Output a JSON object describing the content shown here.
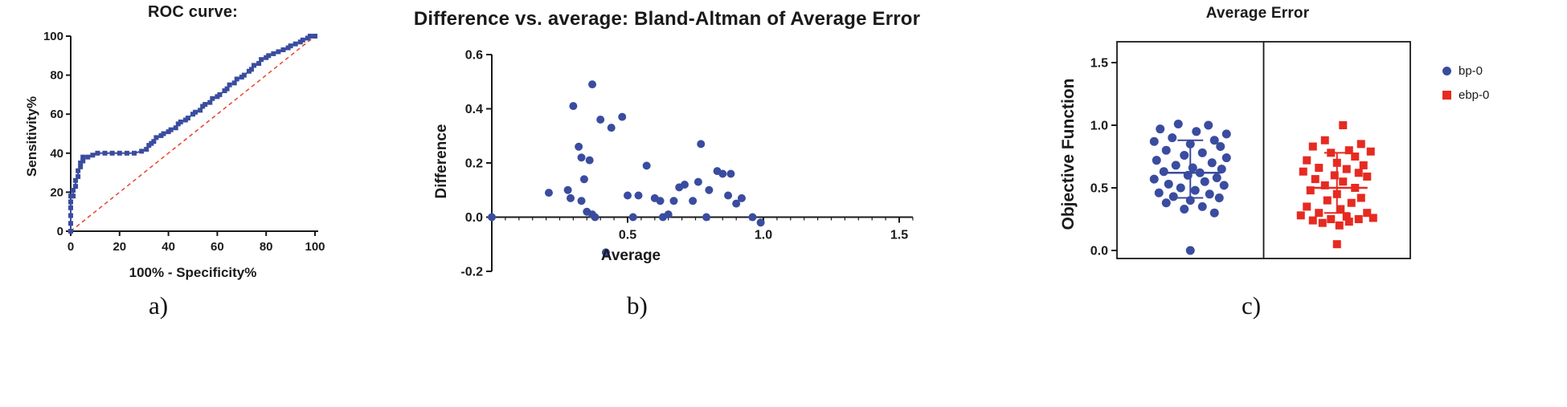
{
  "panels": {
    "a": {
      "label": "a)"
    },
    "b": {
      "label": "b)"
    },
    "c": {
      "label": "c)"
    }
  },
  "chart_data": [
    {
      "id": "roc",
      "type": "line",
      "title": "ROC curve:",
      "xlabel": "100% - Specificity%",
      "ylabel": "Sensitivity%",
      "xlim": [
        0,
        100
      ],
      "ylim": [
        0,
        100
      ],
      "xticks": [
        0,
        20,
        40,
        60,
        80,
        100
      ],
      "yticks": [
        0,
        20,
        40,
        60,
        80,
        100
      ],
      "xtick_labels": [
        "0",
        "20",
        "40",
        "60",
        "80",
        "100"
      ],
      "ytick_labels": [
        "0",
        "20",
        "40",
        "60",
        "80",
        "100"
      ],
      "grid": false,
      "series": [
        {
          "name": "roc-curve",
          "style": "line-with-square-markers",
          "color": "#3A4C9F",
          "points": [
            [
              0,
              0
            ],
            [
              0,
              4
            ],
            [
              0,
              8
            ],
            [
              0,
              12
            ],
            [
              0,
              15
            ],
            [
              0,
              18
            ],
            [
              1,
              18
            ],
            [
              1,
              21
            ],
            [
              2,
              23
            ],
            [
              2,
              26
            ],
            [
              3,
              28
            ],
            [
              3,
              31
            ],
            [
              4,
              33
            ],
            [
              4,
              35
            ],
            [
              5,
              36
            ],
            [
              5,
              38
            ],
            [
              7,
              38
            ],
            [
              9,
              39
            ],
            [
              11,
              40
            ],
            [
              14,
              40
            ],
            [
              17,
              40
            ],
            [
              20,
              40
            ],
            [
              23,
              40
            ],
            [
              26,
              40
            ],
            [
              29,
              41
            ],
            [
              31,
              42
            ],
            [
              32,
              44
            ],
            [
              33,
              45
            ],
            [
              34,
              46
            ],
            [
              35,
              48
            ],
            [
              37,
              49
            ],
            [
              38,
              50
            ],
            [
              40,
              51
            ],
            [
              41,
              52
            ],
            [
              43,
              53
            ],
            [
              44,
              55
            ],
            [
              45,
              56
            ],
            [
              47,
              57
            ],
            [
              48,
              58
            ],
            [
              50,
              60
            ],
            [
              51,
              61
            ],
            [
              53,
              62
            ],
            [
              54,
              64
            ],
            [
              55,
              65
            ],
            [
              57,
              66
            ],
            [
              58,
              68
            ],
            [
              60,
              69
            ],
            [
              61,
              70
            ],
            [
              63,
              72
            ],
            [
              64,
              73
            ],
            [
              65,
              75
            ],
            [
              67,
              76
            ],
            [
              68,
              78
            ],
            [
              70,
              79
            ],
            [
              71,
              80
            ],
            [
              73,
              82
            ],
            [
              74,
              83
            ],
            [
              75,
              85
            ],
            [
              77,
              86
            ],
            [
              78,
              88
            ],
            [
              80,
              89
            ],
            [
              81,
              90
            ],
            [
              83,
              91
            ],
            [
              85,
              92
            ],
            [
              87,
              93
            ],
            [
              89,
              94
            ],
            [
              90,
              95
            ],
            [
              92,
              96
            ],
            [
              94,
              97
            ],
            [
              95,
              98
            ],
            [
              97,
              99
            ],
            [
              98,
              100
            ],
            [
              100,
              100
            ]
          ]
        },
        {
          "name": "identity-line",
          "style": "dashed",
          "color": "#E8432F",
          "points": [
            [
              0,
              0
            ],
            [
              100,
              100
            ]
          ]
        }
      ]
    },
    {
      "id": "bland-altman",
      "type": "scatter",
      "title": "Difference vs. average: Bland-Altman of Average Error",
      "xlabel": "Average",
      "ylabel": "Difference",
      "xlim": [
        0,
        1.55
      ],
      "ylim": [
        -0.2,
        0.6
      ],
      "xticks": [
        0.5,
        1.0,
        1.5
      ],
      "xtick_labels": [
        "0.5",
        "1.0",
        "1.5"
      ],
      "minor_tick_step": 0.05,
      "yticks": [
        -0.2,
        0.0,
        0.2,
        0.4,
        0.6
      ],
      "ytick_labels": [
        "-0.2",
        "0.0",
        "0.2",
        "0.4",
        "0.6"
      ],
      "marker_color": "#3A4C9F",
      "grid": false,
      "points": [
        [
          0.0,
          0.0
        ],
        [
          0.21,
          0.09
        ],
        [
          0.28,
          0.1
        ],
        [
          0.29,
          0.07
        ],
        [
          0.3,
          0.41
        ],
        [
          0.32,
          0.26
        ],
        [
          0.33,
          0.06
        ],
        [
          0.33,
          0.22
        ],
        [
          0.34,
          0.14
        ],
        [
          0.35,
          0.02
        ],
        [
          0.36,
          0.21
        ],
        [
          0.37,
          0.49
        ],
        [
          0.37,
          0.01
        ],
        [
          0.38,
          0.0
        ],
        [
          0.4,
          0.36
        ],
        [
          0.42,
          -0.13
        ],
        [
          0.44,
          0.33
        ],
        [
          0.48,
          0.37
        ],
        [
          0.5,
          0.08
        ],
        [
          0.52,
          0.0
        ],
        [
          0.54,
          0.08
        ],
        [
          0.57,
          0.19
        ],
        [
          0.6,
          0.07
        ],
        [
          0.62,
          0.06
        ],
        [
          0.63,
          0.0
        ],
        [
          0.65,
          0.01
        ],
        [
          0.67,
          0.06
        ],
        [
          0.69,
          0.11
        ],
        [
          0.71,
          0.12
        ],
        [
          0.74,
          0.06
        ],
        [
          0.76,
          0.13
        ],
        [
          0.77,
          0.27
        ],
        [
          0.79,
          0.0
        ],
        [
          0.8,
          0.1
        ],
        [
          0.83,
          0.17
        ],
        [
          0.85,
          0.16
        ],
        [
          0.87,
          0.08
        ],
        [
          0.88,
          0.16
        ],
        [
          0.9,
          0.05
        ],
        [
          0.92,
          0.07
        ],
        [
          0.96,
          0.0
        ],
        [
          0.99,
          -0.02
        ]
      ]
    },
    {
      "id": "average-error",
      "type": "scatter-column",
      "title": "Average Error",
      "ylabel": "Objective Function",
      "ylim": [
        0,
        1.5
      ],
      "yticks": [
        0,
        0.5,
        1.0,
        1.5
      ],
      "ytick_labels": [
        "0.0",
        "0.5",
        "1.0",
        "1.5"
      ],
      "grid": false,
      "groups": [
        {
          "name": "bp-0",
          "color": "#3A4C9F",
          "marker": "circle",
          "mean": 0.62,
          "error_low": 0.42,
          "error_high": 0.88,
          "points": [
            [
              -0.1,
              1.01
            ],
            [
              0.15,
              1.0
            ],
            [
              -0.25,
              0.97
            ],
            [
              0.05,
              0.95
            ],
            [
              0.3,
              0.93
            ],
            [
              -0.15,
              0.9
            ],
            [
              0.2,
              0.88
            ],
            [
              -0.3,
              0.87
            ],
            [
              0.0,
              0.85
            ],
            [
              0.25,
              0.83
            ],
            [
              -0.2,
              0.8
            ],
            [
              0.1,
              0.78
            ],
            [
              -0.05,
              0.76
            ],
            [
              0.3,
              0.74
            ],
            [
              -0.28,
              0.72
            ],
            [
              0.18,
              0.7
            ],
            [
              -0.12,
              0.68
            ],
            [
              0.02,
              0.66
            ],
            [
              0.26,
              0.65
            ],
            [
              -0.22,
              0.63
            ],
            [
              0.08,
              0.62
            ],
            [
              -0.02,
              0.6
            ],
            [
              0.22,
              0.58
            ],
            [
              -0.3,
              0.57
            ],
            [
              0.12,
              0.55
            ],
            [
              -0.18,
              0.53
            ],
            [
              0.28,
              0.52
            ],
            [
              -0.08,
              0.5
            ],
            [
              0.04,
              0.48
            ],
            [
              -0.26,
              0.46
            ],
            [
              0.16,
              0.45
            ],
            [
              -0.14,
              0.43
            ],
            [
              0.24,
              0.42
            ],
            [
              0.0,
              0.4
            ],
            [
              -0.2,
              0.38
            ],
            [
              0.1,
              0.35
            ],
            [
              -0.05,
              0.33
            ],
            [
              0.2,
              0.3
            ],
            [
              0.0,
              0.0
            ]
          ]
        },
        {
          "name": "ebp-0",
          "color": "#E62A21",
          "marker": "square",
          "mean": 0.5,
          "error_low": 0.3,
          "error_high": 0.78,
          "points": [
            [
              0.05,
              1.0
            ],
            [
              -0.1,
              0.88
            ],
            [
              0.2,
              0.85
            ],
            [
              -0.2,
              0.83
            ],
            [
              0.1,
              0.8
            ],
            [
              0.28,
              0.79
            ],
            [
              -0.05,
              0.78
            ],
            [
              0.15,
              0.75
            ],
            [
              -0.25,
              0.72
            ],
            [
              0.0,
              0.7
            ],
            [
              0.22,
              0.68
            ],
            [
              -0.15,
              0.66
            ],
            [
              0.08,
              0.65
            ],
            [
              -0.28,
              0.63
            ],
            [
              0.18,
              0.62
            ],
            [
              -0.02,
              0.6
            ],
            [
              0.25,
              0.59
            ],
            [
              -0.18,
              0.57
            ],
            [
              0.05,
              0.55
            ],
            [
              -0.1,
              0.52
            ],
            [
              0.15,
              0.5
            ],
            [
              -0.22,
              0.48
            ],
            [
              0.0,
              0.45
            ],
            [
              0.2,
              0.42
            ],
            [
              -0.08,
              0.4
            ],
            [
              0.12,
              0.38
            ],
            [
              -0.25,
              0.35
            ],
            [
              0.03,
              0.33
            ],
            [
              0.25,
              0.3
            ],
            [
              -0.15,
              0.3
            ],
            [
              -0.3,
              0.28
            ],
            [
              0.08,
              0.27
            ],
            [
              0.3,
              0.26
            ],
            [
              -0.05,
              0.25
            ],
            [
              0.18,
              0.25
            ],
            [
              -0.2,
              0.24
            ],
            [
              0.1,
              0.23
            ],
            [
              -0.12,
              0.22
            ],
            [
              0.02,
              0.2
            ],
            [
              0.0,
              0.05
            ]
          ]
        }
      ],
      "legend": [
        {
          "label": "bp-0",
          "marker": "circle",
          "color": "#3A4C9F"
        },
        {
          "label": "ebp-0",
          "marker": "square",
          "color": "#E62A21"
        }
      ]
    }
  ]
}
